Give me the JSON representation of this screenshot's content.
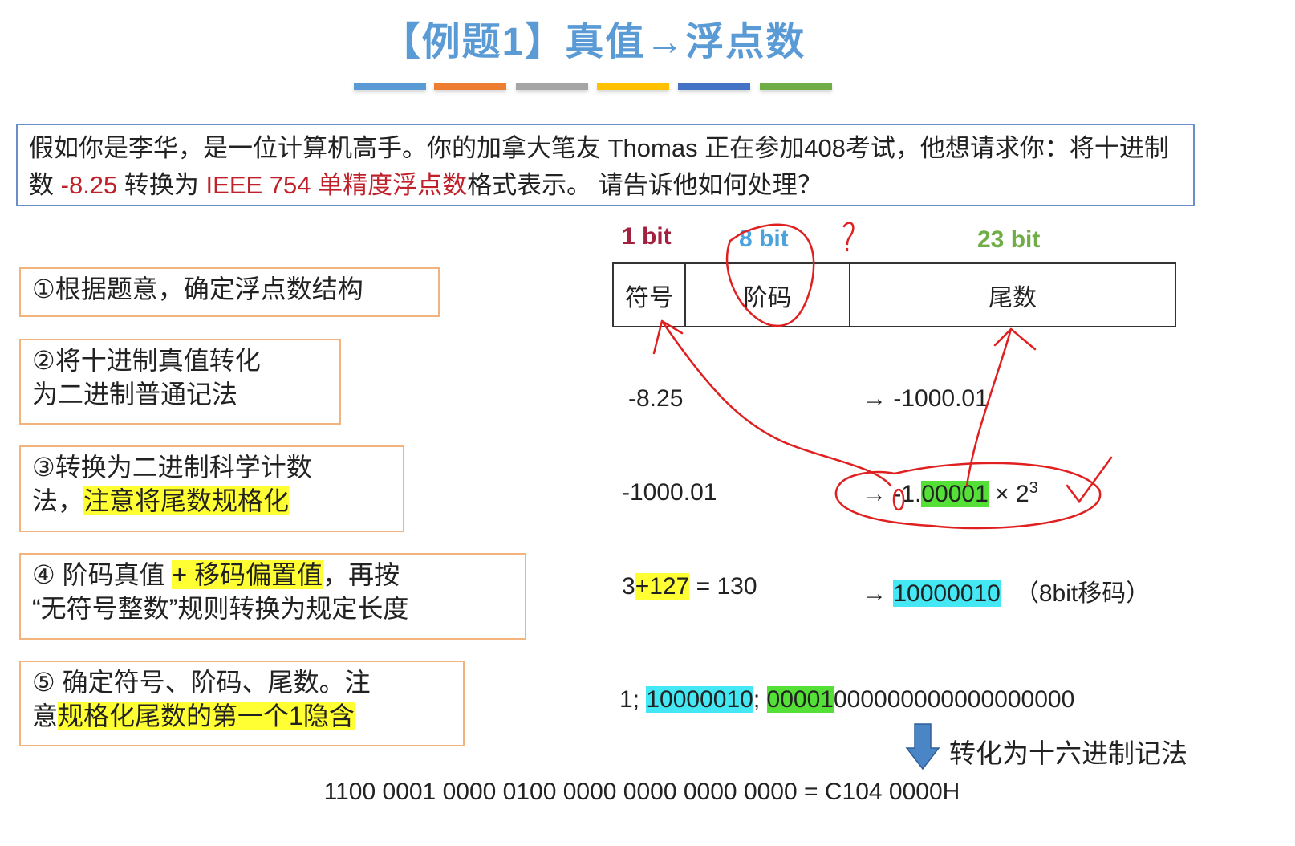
{
  "title": "【例题1】真值→浮点数",
  "divider_colors": [
    "#5b9bd5",
    "#ed7d31",
    "#a5a5a5",
    "#ffc000",
    "#4472c4",
    "#70ad47"
  ],
  "problem": {
    "part1": "假如你是李华，是一位计算机高手。你的加拿大笔友 Thomas 正在参加408考试，他想请求你：将十进制数 ",
    "value": "-8.25",
    "part2": " 转换为 ",
    "format": "IEEE 754 单精度浮点数",
    "part3": "格式表示。 请告诉他如何处理？"
  },
  "steps": [
    {
      "text": "①根据题意，确定浮点数结构"
    },
    {
      "line1": "②将十进制真值转化",
      "line2": "为二进制普通记法"
    },
    {
      "line1": "③转换为二进制科学计数",
      "line2a": "法，",
      "line2b": "注意将尾数规格化"
    },
    {
      "line1a": "④ 阶码真值 ",
      "line1b": "+ 移码偏置值",
      "line1c": "，再按",
      "line2": "“无符号整数”规则转换为规定长度"
    },
    {
      "line1": "⑤ 确定符号、阶码、尾数。注",
      "line2a": "意",
      "line2b": "规格化尾数的第一个1隐含"
    }
  ],
  "structure": {
    "labels": [
      {
        "text": "1 bit",
        "color": "#a3213f"
      },
      {
        "text": "8 bit",
        "color": "#4aa3df"
      },
      {
        "text": "23 bit",
        "color": "#70ad47"
      }
    ],
    "fields": [
      "符号",
      "阶码",
      "尾数"
    ],
    "annotation_question": "?"
  },
  "rows": {
    "r1_left": "-8.25",
    "r1_right": "→ -1000.01",
    "r2_left": "-1000.01",
    "r2_arrow": "→ ",
    "r2_int": "-1.",
    "r2_frac": "00001",
    "r2_times": " × 2",
    "r2_exp": "3",
    "r3_a": "3",
    "r3_b": "+127",
    "r3_c": " = 130",
    "r3_arrow": "→ ",
    "r3_bits": "10000010",
    "r3_note": "（8bit移码）",
    "r4_a": "1; ",
    "r4_exp": "10000010",
    "r4_sep": "; ",
    "r4_frac_hl": "00001",
    "r4_frac_rest": "000000000000000000",
    "convert_label": "转化为十六进制记法",
    "result": "1100 0001 0000 0100 0000 0000 0000 0000 = C104 0000H"
  },
  "colors": {
    "title": "#5b9bd5",
    "highlight_red": "#c0202a",
    "pen": "#e02020",
    "step_border": "#f2b37c"
  }
}
